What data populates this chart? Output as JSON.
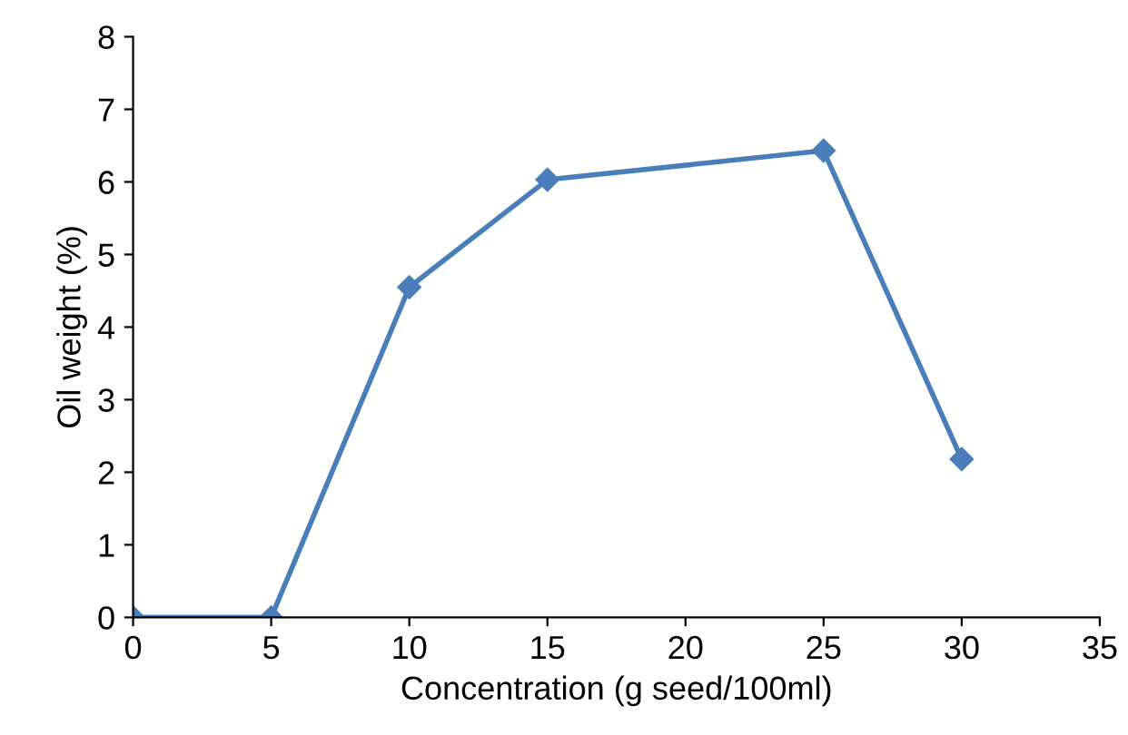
{
  "chart_data": {
    "type": "line",
    "xlabel": "Concentration (g seed/100ml)",
    "ylabel": "Oil weight (%)",
    "x": [
      0,
      5,
      10,
      15,
      25,
      30
    ],
    "series": [
      {
        "color": "#4a7ebb",
        "values": [
          0,
          0,
          4.55,
          6.03,
          6.43,
          2.18
        ]
      }
    ],
    "xlim": [
      0,
      35
    ],
    "xticks": [
      0,
      5,
      10,
      15,
      20,
      25,
      30,
      35
    ],
    "ylim": [
      0,
      8
    ],
    "yticks": [
      0,
      1,
      2,
      3,
      4,
      5,
      6,
      7,
      8
    ],
    "grid": false,
    "legend": false,
    "marker": "diamond",
    "line_style": "solid"
  }
}
